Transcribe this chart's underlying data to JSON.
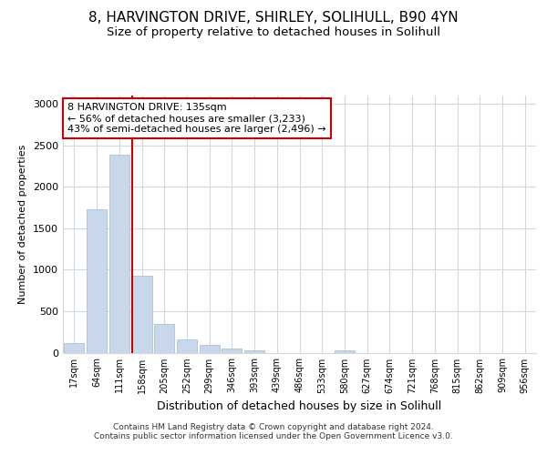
{
  "title_line1": "8, HARVINGTON DRIVE, SHIRLEY, SOLIHULL, B90 4YN",
  "title_line2": "Size of property relative to detached houses in Solihull",
  "xlabel": "Distribution of detached houses by size in Solihull",
  "ylabel": "Number of detached properties",
  "bin_labels": [
    "17sqm",
    "64sqm",
    "111sqm",
    "158sqm",
    "205sqm",
    "252sqm",
    "299sqm",
    "346sqm",
    "393sqm",
    "439sqm",
    "486sqm",
    "533sqm",
    "580sqm",
    "627sqm",
    "674sqm",
    "721sqm",
    "768sqm",
    "815sqm",
    "862sqm",
    "909sqm",
    "956sqm"
  ],
  "bar_values": [
    120,
    1730,
    2390,
    930,
    350,
    155,
    90,
    50,
    25,
    0,
    0,
    0,
    30,
    0,
    0,
    0,
    0,
    0,
    0,
    0,
    0
  ],
  "bar_color": "#c8d8ea",
  "bar_edgecolor": "#a0b8d0",
  "property_line_x": 2.57,
  "property_line_color": "#cc0000",
  "annotation_text": "8 HARVINGTON DRIVE: 135sqm\n← 56% of detached houses are smaller (3,233)\n43% of semi-detached houses are larger (2,496) →",
  "annotation_box_facecolor": "#ffffff",
  "annotation_box_edgecolor": "#cc0000",
  "ylim": [
    0,
    3100
  ],
  "yticks": [
    0,
    500,
    1000,
    1500,
    2000,
    2500,
    3000
  ],
  "footer_line1": "Contains HM Land Registry data © Crown copyright and database right 2024.",
  "footer_line2": "Contains public sector information licensed under the Open Government Licence v3.0.",
  "bg_color": "#ffffff",
  "plot_bg_color": "#ffffff",
  "grid_color": "#d0d8e0",
  "title1_fontsize": 11,
  "title2_fontsize": 9.5
}
